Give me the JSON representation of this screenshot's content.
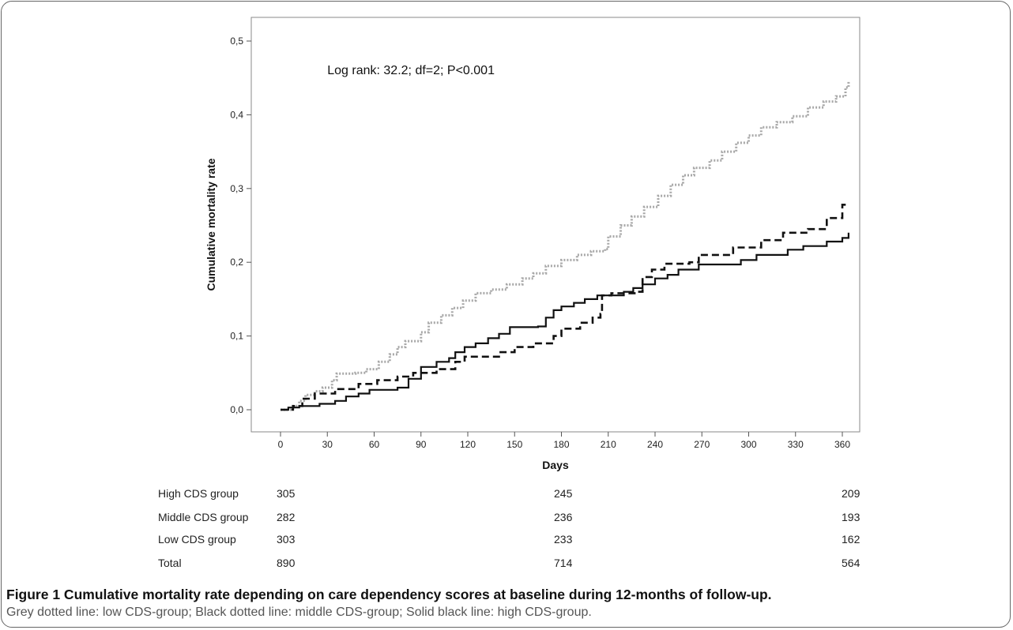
{
  "figure": {
    "caption_title": "Figure 1 Cumulative mortality rate depending on care dependency scores at baseline during 12-months of follow-up.",
    "caption_text": "Grey dotted line: low CDS-group; Black dotted line: middle CDS-group; Solid black line: high CDS-group."
  },
  "chart_data": {
    "type": "line",
    "step": true,
    "xlabel": "Days",
    "ylabel": "Cumulative mortality rate",
    "xlim": [
      -10,
      370
    ],
    "ylim": [
      -0.02,
      0.52
    ],
    "xticks": [
      0,
      30,
      60,
      90,
      120,
      150,
      180,
      210,
      240,
      270,
      300,
      330,
      360
    ],
    "yticks": [
      0,
      0.1,
      0.2,
      0.3,
      0.4,
      0.5
    ],
    "ytick_labels": [
      "0,0",
      "0,1",
      "0,2",
      "0,3",
      "0,4",
      "0,5"
    ],
    "grid": false,
    "annotation": "Log rank: 32.2; df=2; P<0.001",
    "series": [
      {
        "style": "grey-dotted",
        "color": "#a8a8a8",
        "points": [
          [
            0,
            0
          ],
          [
            8,
            0.005
          ],
          [
            12,
            0.012
          ],
          [
            16,
            0.02
          ],
          [
            22,
            0.025
          ],
          [
            27,
            0.03
          ],
          [
            33,
            0.04
          ],
          [
            36,
            0.049
          ],
          [
            48,
            0.05
          ],
          [
            55,
            0.055
          ],
          [
            63,
            0.065
          ],
          [
            70,
            0.075
          ],
          [
            75,
            0.085
          ],
          [
            80,
            0.093
          ],
          [
            90,
            0.105
          ],
          [
            95,
            0.118
          ],
          [
            103,
            0.128
          ],
          [
            110,
            0.138
          ],
          [
            117,
            0.148
          ],
          [
            125,
            0.158
          ],
          [
            135,
            0.163
          ],
          [
            145,
            0.17
          ],
          [
            155,
            0.178
          ],
          [
            162,
            0.185
          ],
          [
            170,
            0.195
          ],
          [
            180,
            0.203
          ],
          [
            190,
            0.21
          ],
          [
            199,
            0.215
          ],
          [
            208,
            0.218
          ],
          [
            210,
            0.235
          ],
          [
            218,
            0.25
          ],
          [
            225,
            0.262
          ],
          [
            233,
            0.275
          ],
          [
            242,
            0.29
          ],
          [
            250,
            0.305
          ],
          [
            258,
            0.318
          ],
          [
            265,
            0.328
          ],
          [
            275,
            0.338
          ],
          [
            283,
            0.35
          ],
          [
            292,
            0.362
          ],
          [
            300,
            0.372
          ],
          [
            308,
            0.383
          ],
          [
            318,
            0.39
          ],
          [
            328,
            0.398
          ],
          [
            338,
            0.41
          ],
          [
            348,
            0.418
          ],
          [
            356,
            0.425
          ],
          [
            362,
            0.437
          ],
          [
            364,
            0.445
          ]
        ]
      },
      {
        "style": "black-dashed",
        "color": "#111111",
        "points": [
          [
            0,
            0
          ],
          [
            8,
            0.005
          ],
          [
            14,
            0.015
          ],
          [
            22,
            0.022
          ],
          [
            35,
            0.028
          ],
          [
            50,
            0.035
          ],
          [
            62,
            0.04
          ],
          [
            75,
            0.045
          ],
          [
            85,
            0.05
          ],
          [
            100,
            0.055
          ],
          [
            112,
            0.065
          ],
          [
            118,
            0.072
          ],
          [
            140,
            0.078
          ],
          [
            150,
            0.085
          ],
          [
            162,
            0.09
          ],
          [
            175,
            0.1
          ],
          [
            180,
            0.11
          ],
          [
            192,
            0.118
          ],
          [
            200,
            0.125
          ],
          [
            205,
            0.13
          ],
          [
            206,
            0.155
          ],
          [
            212,
            0.158
          ],
          [
            228,
            0.16
          ],
          [
            232,
            0.18
          ],
          [
            238,
            0.19
          ],
          [
            246,
            0.198
          ],
          [
            262,
            0.2
          ],
          [
            268,
            0.21
          ],
          [
            290,
            0.22
          ],
          [
            308,
            0.23
          ],
          [
            322,
            0.24
          ],
          [
            338,
            0.245
          ],
          [
            350,
            0.26
          ],
          [
            360,
            0.278
          ],
          [
            364,
            0.278
          ]
        ]
      },
      {
        "style": "solid-black",
        "color": "#111111",
        "points": [
          [
            0,
            0
          ],
          [
            5,
            0.003
          ],
          [
            12,
            0.005
          ],
          [
            25,
            0.008
          ],
          [
            35,
            0.012
          ],
          [
            42,
            0.018
          ],
          [
            50,
            0.022
          ],
          [
            57,
            0.027
          ],
          [
            75,
            0.03
          ],
          [
            82,
            0.042
          ],
          [
            90,
            0.058
          ],
          [
            100,
            0.065
          ],
          [
            108,
            0.07
          ],
          [
            112,
            0.078
          ],
          [
            118,
            0.085
          ],
          [
            125,
            0.09
          ],
          [
            133,
            0.097
          ],
          [
            140,
            0.103
          ],
          [
            147,
            0.112
          ],
          [
            165,
            0.113
          ],
          [
            170,
            0.125
          ],
          [
            175,
            0.135
          ],
          [
            180,
            0.14
          ],
          [
            188,
            0.145
          ],
          [
            195,
            0.15
          ],
          [
            203,
            0.155
          ],
          [
            220,
            0.16
          ],
          [
            226,
            0.165
          ],
          [
            232,
            0.17
          ],
          [
            240,
            0.178
          ],
          [
            248,
            0.183
          ],
          [
            255,
            0.19
          ],
          [
            268,
            0.197
          ],
          [
            295,
            0.203
          ],
          [
            305,
            0.21
          ],
          [
            325,
            0.217
          ],
          [
            335,
            0.222
          ],
          [
            350,
            0.228
          ],
          [
            360,
            0.233
          ],
          [
            364,
            0.24
          ]
        ]
      }
    ],
    "risk_table": {
      "timepoints": [
        0,
        180,
        365
      ],
      "rows": [
        {
          "label": "High CDS group",
          "values": [
            "305",
            "245",
            "209"
          ]
        },
        {
          "label": "Middle CDS group",
          "values": [
            "282",
            "236",
            "193"
          ]
        },
        {
          "label": "Low CDS group",
          "values": [
            "303",
            "233",
            "162"
          ]
        },
        {
          "label": "Total",
          "values": [
            "890",
            "714",
            "564"
          ]
        }
      ]
    }
  }
}
